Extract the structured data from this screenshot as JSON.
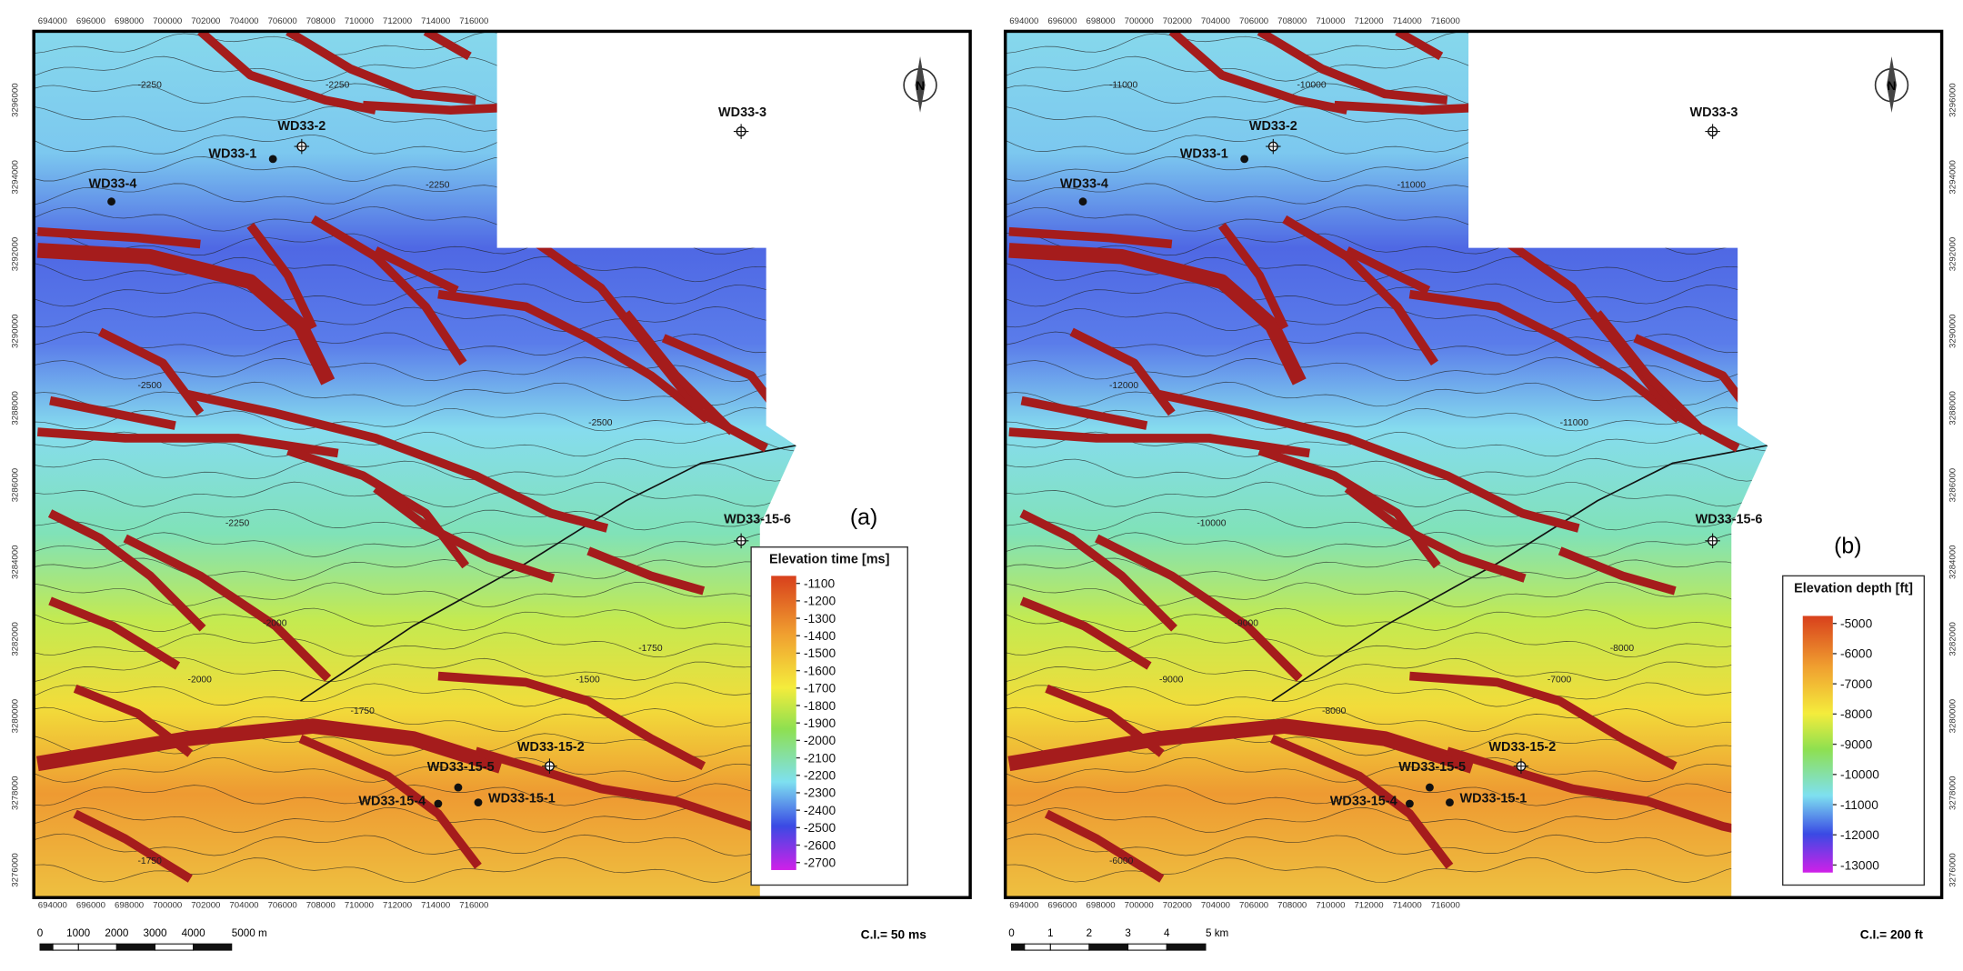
{
  "panels": [
    {
      "panel_label": "(a)",
      "x_ticks": [
        "694000",
        "696000",
        "698000",
        "700000",
        "702000",
        "704000",
        "706000",
        "708000",
        "710000",
        "712000",
        "714000",
        "716000"
      ],
      "y_ticks": [
        "3296000",
        "3294000",
        "3292000",
        "3290000",
        "3288000",
        "3286000",
        "3284000",
        "3282000",
        "3280000",
        "3278000",
        "3276000"
      ],
      "wells": [
        "WD33-3",
        "WD33-2",
        "WD33-1",
        "WD33-4",
        "WD33-15-6",
        "WD33-15-2",
        "WD33-15-5",
        "WD33-15-1",
        "WD33-15-4"
      ],
      "contour_labels": [
        -2250,
        -2250,
        -2250,
        -2500,
        -2500,
        -2250,
        -2000,
        -1750,
        -1500,
        -1750,
        -2000,
        -1750
      ],
      "legend": {
        "title": "Elevation time [ms]",
        "values": [
          -1100,
          -1200,
          -1300,
          -1400,
          -1500,
          -1600,
          -1700,
          -1800,
          -1900,
          -2000,
          -2100,
          -2200,
          -2300,
          -2400,
          -2500,
          -2600,
          -2700
        ]
      },
      "scale_bar": [
        "0",
        "1000",
        "2000",
        "3000",
        "4000",
        "5000 m"
      ],
      "contour_interval": "C.I.= 50 ms"
    },
    {
      "panel_label": "(b)",
      "x_ticks": [
        "694000",
        "696000",
        "698000",
        "700000",
        "702000",
        "704000",
        "706000",
        "708000",
        "710000",
        "712000",
        "714000",
        "716000"
      ],
      "y_ticks": [
        "3296000",
        "3294000",
        "3292000",
        "3290000",
        "3288000",
        "3286000",
        "3284000",
        "3282000",
        "3280000",
        "3278000",
        "3276000"
      ],
      "wells": [
        "WD33-3",
        "WD33-2",
        "WD33-1",
        "WD33-4",
        "WD33-15-6",
        "WD33-15-2",
        "WD33-15-5",
        "WD33-15-1",
        "WD33-15-4"
      ],
      "contour_labels": [
        -11000,
        -10000,
        -11000,
        -12000,
        -11000,
        -10000,
        -9000,
        -8000,
        -7000,
        -8000,
        -9000,
        -6000
      ],
      "legend": {
        "title": "Elevation depth [ft]",
        "values": [
          -5000,
          -6000,
          -7000,
          -8000,
          -9000,
          -10000,
          -11000,
          -12000,
          -13000
        ]
      },
      "scale_bar": [
        "0",
        "1",
        "2",
        "3",
        "4",
        "5 km"
      ],
      "contour_interval": "C.I.= 200 ft"
    }
  ]
}
